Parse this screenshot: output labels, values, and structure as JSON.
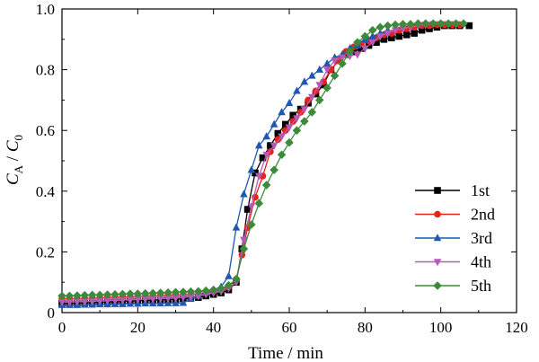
{
  "chart_data": {
    "type": "line",
    "xlabel": "Time / min",
    "ylabel": {
      "main": "C",
      "sub1": "A",
      "sep": " / ",
      "main2": "C",
      "sub2": "0"
    },
    "xlim": [
      0,
      120
    ],
    "ylim": [
      0,
      1.0
    ],
    "xticks": [
      0,
      20,
      40,
      60,
      80,
      100,
      120
    ],
    "yticks": [
      0,
      0.2,
      0.4,
      0.6,
      0.8,
      1.0
    ],
    "xtick_labels": [
      "0",
      "20",
      "40",
      "60",
      "80",
      "100",
      "120"
    ],
    "ytick_labels": [
      "0",
      "0.2",
      "0.4",
      "0.6",
      "0.8",
      "1.0"
    ],
    "legend_position": "right",
    "series": [
      {
        "name": "1st",
        "color": "#000000",
        "marker": "square",
        "x": [
          0,
          2,
          4,
          6,
          8,
          10,
          12,
          14,
          16,
          18,
          20,
          22,
          24,
          26,
          28,
          30,
          32,
          34,
          36,
          38,
          40,
          42,
          44,
          46,
          47.5,
          49,
          51,
          53,
          55,
          57,
          59,
          61,
          63,
          65,
          67,
          69,
          71,
          73,
          75,
          77,
          79,
          81,
          83,
          85,
          87,
          89,
          91,
          93,
          95,
          97,
          99,
          101,
          103,
          105,
          107.5
        ],
        "y": [
          0.03,
          0.03,
          0.031,
          0.032,
          0.033,
          0.034,
          0.035,
          0.036,
          0.037,
          0.038,
          0.039,
          0.04,
          0.041,
          0.042,
          0.043,
          0.044,
          0.046,
          0.048,
          0.05,
          0.055,
          0.06,
          0.065,
          0.075,
          0.1,
          0.21,
          0.34,
          0.46,
          0.51,
          0.55,
          0.59,
          0.62,
          0.65,
          0.67,
          0.69,
          0.72,
          0.75,
          0.8,
          0.83,
          0.85,
          0.86,
          0.87,
          0.88,
          0.89,
          0.9,
          0.905,
          0.91,
          0.915,
          0.92,
          0.93,
          0.935,
          0.94,
          0.945,
          0.945,
          0.945,
          0.945
        ]
      },
      {
        "name": "2nd",
        "color": "#e8221b",
        "marker": "circle",
        "x": [
          0,
          2,
          4,
          6,
          8,
          10,
          12,
          14,
          16,
          18,
          20,
          22,
          24,
          26,
          28,
          30,
          32,
          34,
          36,
          38,
          40,
          42,
          44,
          46,
          47.5,
          49,
          51,
          53,
          55,
          57,
          59,
          61,
          63,
          65,
          67,
          69,
          71,
          73,
          75,
          77,
          79,
          81,
          83,
          85,
          87,
          89,
          91,
          93,
          95,
          97,
          99,
          101,
          103,
          105
        ],
        "y": [
          0.045,
          0.045,
          0.046,
          0.046,
          0.047,
          0.048,
          0.049,
          0.05,
          0.051,
          0.052,
          0.053,
          0.054,
          0.055,
          0.056,
          0.057,
          0.058,
          0.059,
          0.06,
          0.062,
          0.065,
          0.07,
          0.075,
          0.085,
          0.11,
          0.19,
          0.28,
          0.38,
          0.45,
          0.53,
          0.57,
          0.6,
          0.63,
          0.66,
          0.7,
          0.73,
          0.76,
          0.8,
          0.83,
          0.86,
          0.875,
          0.885,
          0.895,
          0.905,
          0.915,
          0.92,
          0.93,
          0.935,
          0.94,
          0.945,
          0.945,
          0.948,
          0.948,
          0.948,
          0.948
        ]
      },
      {
        "name": "3rd",
        "color": "#1f57b3",
        "marker": "triangle-up",
        "x": [
          0,
          2,
          4,
          6,
          8,
          10,
          12,
          14,
          16,
          18,
          20,
          22,
          24,
          26,
          28,
          30,
          32,
          34,
          36,
          38,
          40,
          42,
          44,
          46,
          48,
          50,
          52,
          54,
          56,
          58,
          60,
          62,
          64,
          66,
          68,
          70,
          72,
          74,
          76,
          78,
          80,
          82,
          84,
          86
        ],
        "y": [
          0.025,
          0.025,
          0.025,
          0.026,
          0.026,
          0.027,
          0.027,
          0.028,
          0.028,
          0.029,
          0.029,
          0.03,
          0.03,
          0.03,
          0.031,
          0.031,
          0.032,
          0.045,
          0.055,
          0.065,
          0.075,
          0.085,
          0.12,
          0.28,
          0.39,
          0.47,
          0.55,
          0.58,
          0.62,
          0.66,
          0.69,
          0.73,
          0.76,
          0.78,
          0.8,
          0.82,
          0.84,
          0.85,
          0.87,
          0.88,
          0.9,
          0.91,
          0.92,
          0.93
        ]
      },
      {
        "name": "4th",
        "color": "#b55bb5",
        "marker": "triangle-down",
        "x": [
          0,
          2,
          4,
          6,
          8,
          10,
          12,
          14,
          16,
          18,
          20,
          22,
          24,
          26,
          28,
          30,
          32,
          34,
          36,
          38,
          40,
          42,
          44,
          46,
          48,
          50,
          52,
          54,
          56,
          58,
          60,
          62,
          64,
          66,
          68,
          70,
          72,
          74,
          76,
          78,
          80,
          82,
          84,
          86,
          88,
          90,
          92,
          94,
          96,
          98,
          100,
          102,
          104
        ],
        "y": [
          0.035,
          0.035,
          0.036,
          0.036,
          0.037,
          0.038,
          0.039,
          0.04,
          0.041,
          0.042,
          0.043,
          0.044,
          0.045,
          0.046,
          0.047,
          0.048,
          0.05,
          0.052,
          0.055,
          0.06,
          0.065,
          0.07,
          0.08,
          0.1,
          0.24,
          0.35,
          0.45,
          0.52,
          0.55,
          0.58,
          0.61,
          0.64,
          0.67,
          0.71,
          0.75,
          0.8,
          0.83,
          0.84,
          0.845,
          0.85,
          0.87,
          0.89,
          0.91,
          0.92,
          0.93,
          0.935,
          0.94,
          0.945,
          0.948,
          0.95,
          0.95,
          0.95,
          0.95
        ]
      },
      {
        "name": "5th",
        "color": "#3e8a3b",
        "marker": "diamond",
        "x": [
          0,
          2,
          4,
          6,
          8,
          10,
          12,
          14,
          16,
          18,
          20,
          22,
          24,
          26,
          28,
          30,
          32,
          34,
          36,
          38,
          40,
          42,
          44,
          46,
          48,
          50,
          52,
          54,
          56,
          58,
          60,
          62,
          64,
          66,
          68,
          70,
          72,
          74,
          76,
          78,
          80,
          82,
          84,
          86,
          88,
          90,
          92,
          94,
          96,
          98,
          100,
          102,
          104,
          106
        ],
        "y": [
          0.055,
          0.055,
          0.056,
          0.057,
          0.058,
          0.058,
          0.059,
          0.06,
          0.061,
          0.062,
          0.062,
          0.063,
          0.064,
          0.065,
          0.066,
          0.067,
          0.068,
          0.069,
          0.07,
          0.072,
          0.075,
          0.08,
          0.09,
          0.11,
          0.21,
          0.29,
          0.36,
          0.42,
          0.47,
          0.52,
          0.56,
          0.6,
          0.63,
          0.66,
          0.7,
          0.74,
          0.78,
          0.82,
          0.86,
          0.89,
          0.91,
          0.93,
          0.94,
          0.945,
          0.948,
          0.95,
          0.95,
          0.952,
          0.952,
          0.952,
          0.952,
          0.952,
          0.952,
          0.952
        ]
      }
    ]
  }
}
